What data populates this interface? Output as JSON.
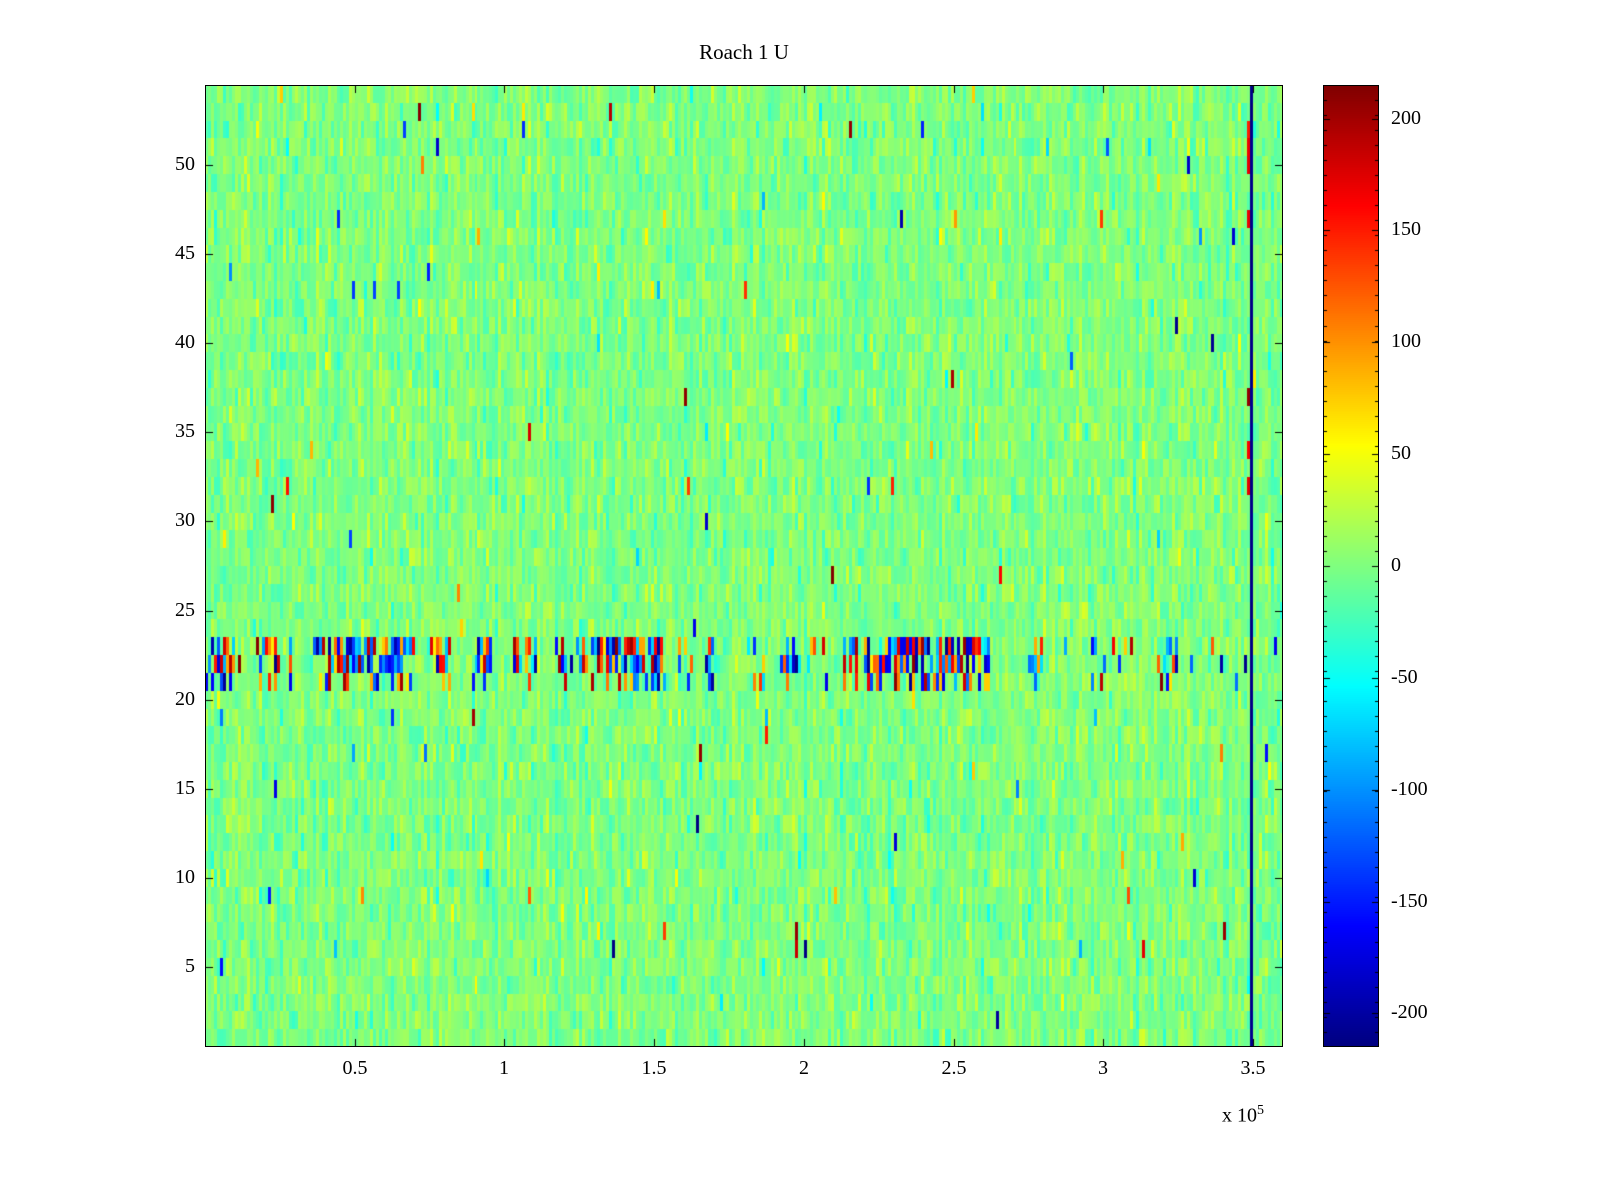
{
  "chart_data": {
    "type": "heatmap",
    "title": "Roach 1 U",
    "xlabel": "",
    "ylabel": "",
    "x_range": [
      0,
      360000
    ],
    "x_ticks": [
      {
        "value": 50000,
        "label": "0.5"
      },
      {
        "value": 100000,
        "label": "1"
      },
      {
        "value": 150000,
        "label": "1.5"
      },
      {
        "value": 200000,
        "label": "2"
      },
      {
        "value": 250000,
        "label": "2.5"
      },
      {
        "value": 300000,
        "label": "3"
      },
      {
        "value": 350000,
        "label": "3.5"
      }
    ],
    "x_multiplier_prefix": "x 10",
    "x_multiplier_exponent": "5",
    "y_range": [
      0.5,
      54.5
    ],
    "y_ticks": [
      {
        "value": 5,
        "label": "5"
      },
      {
        "value": 10,
        "label": "10"
      },
      {
        "value": 15,
        "label": "15"
      },
      {
        "value": 20,
        "label": "20"
      },
      {
        "value": 25,
        "label": "25"
      },
      {
        "value": 30,
        "label": "30"
      },
      {
        "value": 35,
        "label": "35"
      },
      {
        "value": 40,
        "label": "40"
      },
      {
        "value": 45,
        "label": "45"
      },
      {
        "value": 50,
        "label": "50"
      }
    ],
    "grid_rows": 54,
    "grid_cols": 360,
    "colormap": "jet",
    "color_range": [
      -215,
      215
    ],
    "colorbar_segments": 64,
    "colorbar_ticks": [
      {
        "value": 200,
        "label": "200"
      },
      {
        "value": 150,
        "label": "150"
      },
      {
        "value": 100,
        "label": "100"
      },
      {
        "value": 50,
        "label": "50"
      },
      {
        "value": 0,
        "label": "0"
      },
      {
        "value": -50,
        "label": "-50"
      },
      {
        "value": -100,
        "label": "-100"
      },
      {
        "value": -150,
        "label": "-150"
      },
      {
        "value": -200,
        "label": "-200"
      }
    ],
    "noise": {
      "mean": 0,
      "sigma": 13,
      "column_sigma": 5,
      "outlier_prob": 0.012,
      "outlier_sigma": 55,
      "spike_prob": 0.0025,
      "spike_min": 130,
      "spike_span": 85,
      "seed": 1337
    },
    "features": {
      "noisy_band": {
        "rows": [
          21,
          22,
          23
        ],
        "row_fill_prob": [
          0.45,
          0.7,
          0.75
        ],
        "amplitude": 215,
        "burst_switch_prob": 0.06,
        "quiet_fill_factor": 0.08
      },
      "vertical_stripe": {
        "x": 349000,
        "value": -212,
        "jitter": 6
      },
      "stripe_neighbor_spikes": {
        "x": 348000,
        "min_row": 24,
        "prob": 0.28,
        "value_min": 140,
        "value_span": 70
      },
      "points": [
        {
          "x": 197500,
          "y": 7,
          "value": 205
        },
        {
          "x": 197500,
          "y": 6,
          "value": 185
        }
      ]
    }
  }
}
